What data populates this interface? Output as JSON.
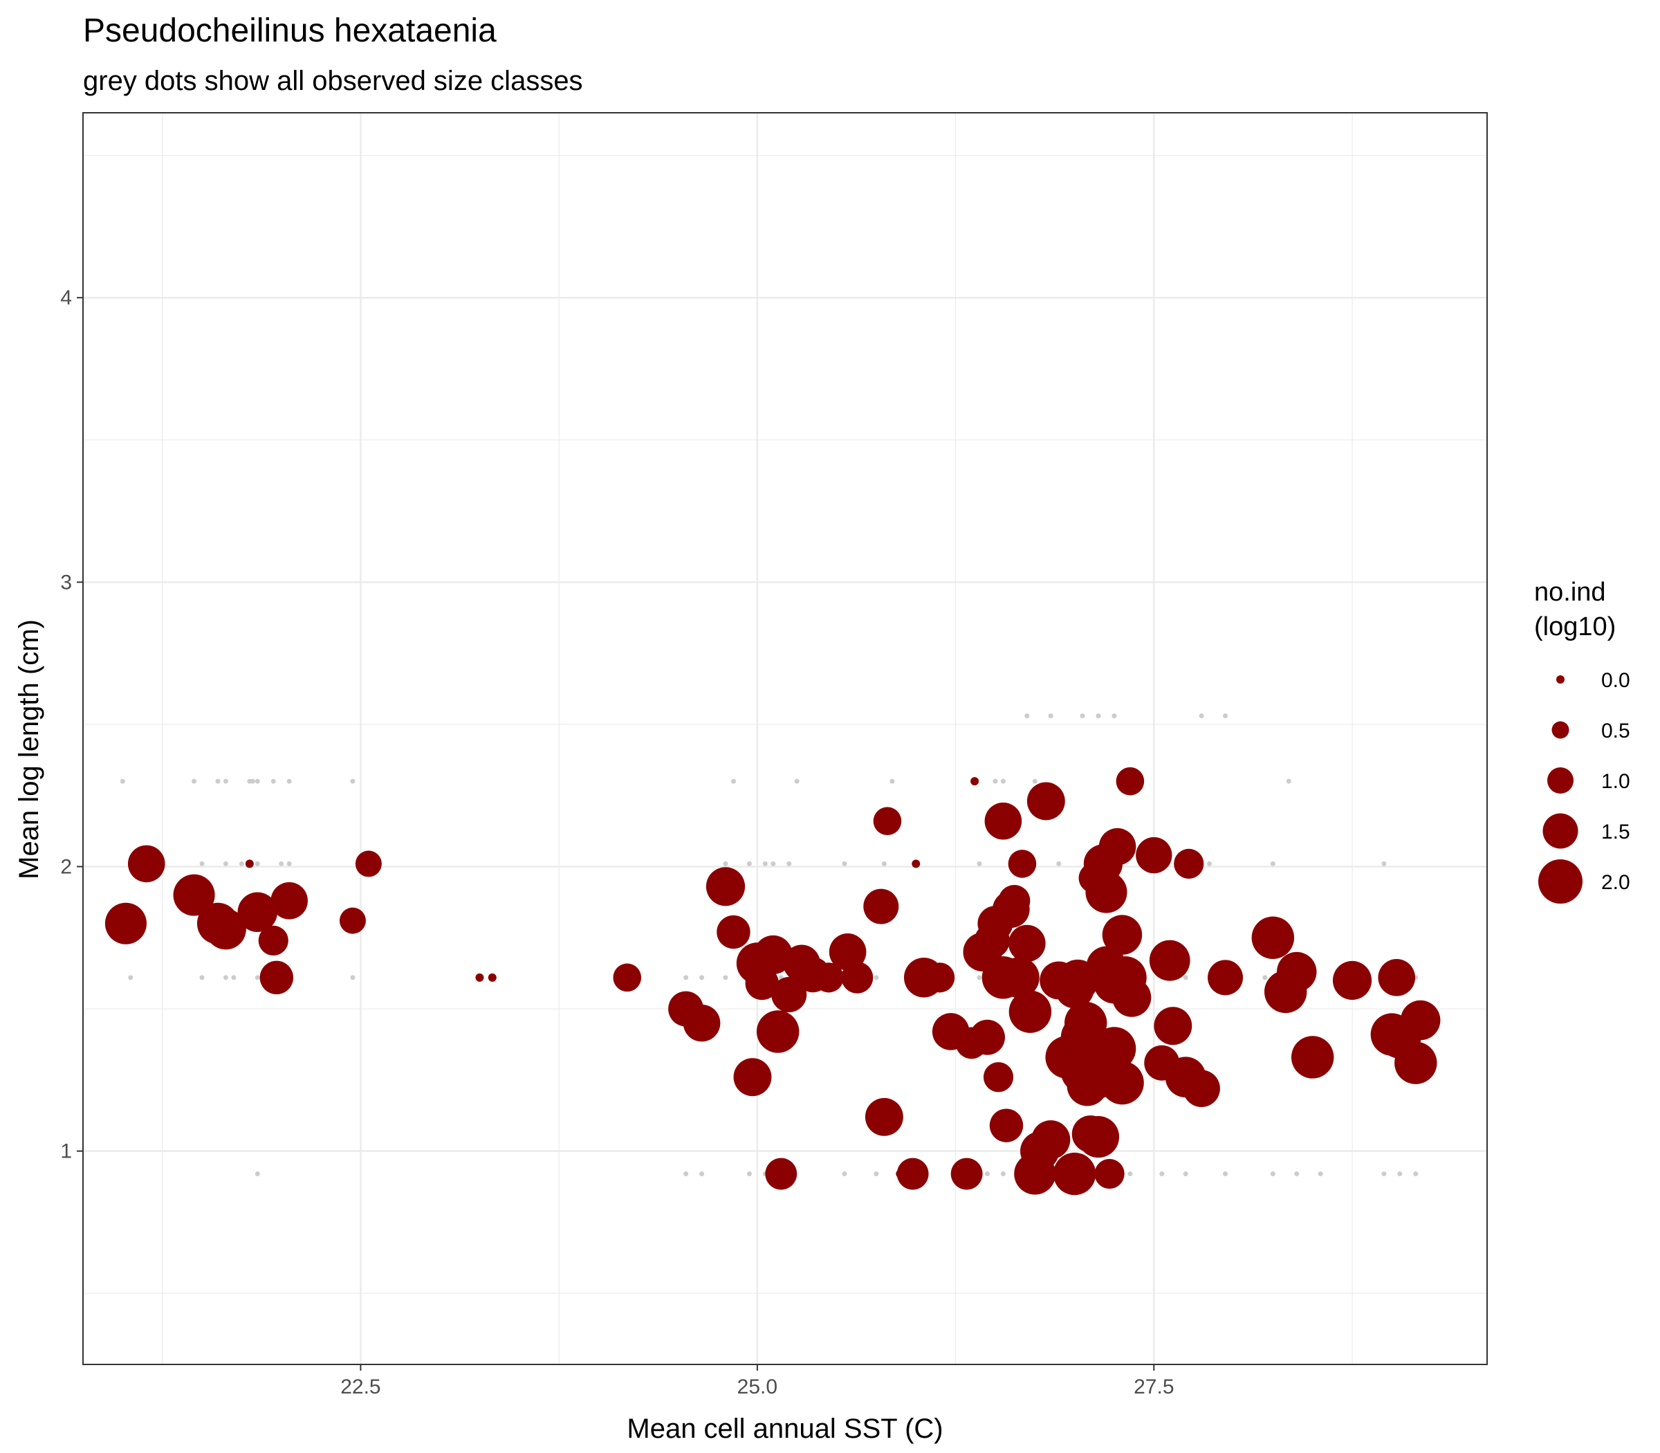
{
  "chart_data": {
    "type": "scatter",
    "title": "Pseudocheilinus hexataenia",
    "subtitle": "grey dots show all observed size classes",
    "xlabel": "Mean cell annual SST (C)",
    "ylabel": "Mean log length (cm)",
    "xlim": [
      20.75,
      29.6
    ],
    "ylim": [
      0.25,
      4.65
    ],
    "x_ticks": [
      22.5,
      25.0,
      27.5
    ],
    "x_tick_labels": [
      "22.5",
      "25.0",
      "27.5"
    ],
    "y_ticks": [
      1,
      2,
      3,
      4
    ],
    "y_tick_labels": [
      "1",
      "2",
      "3",
      "4"
    ],
    "grid": true,
    "legend": {
      "title_lines": [
        "no.ind",
        "(log10)"
      ],
      "placement": "right",
      "values": [
        0.0,
        0.5,
        1.0,
        1.5,
        2.0
      ],
      "labels": [
        "0.0",
        "0.5",
        "1.0",
        "1.5",
        "2.0"
      ]
    },
    "colors": {
      "points": "#8b0000",
      "background_points": "#cccccc",
      "grid": "#ebebeb",
      "border": "#333333"
    },
    "background_points": {
      "name": "all observed size classes",
      "x_values": [
        21.0,
        21.45,
        21.6,
        21.65,
        21.8,
        21.82,
        21.85,
        21.95,
        22.05,
        22.45,
        24.85,
        25.25,
        25.85,
        26.5,
        26.55,
        26.75,
        27.3,
        28.35,
        26.7,
        26.85,
        27.05,
        27.15,
        27.25,
        27.8,
        27.95,
        21.05,
        21.5,
        21.65,
        21.75,
        21.85,
        22.0,
        22.05,
        24.8,
        24.95,
        25.05,
        25.1,
        25.2,
        25.55,
        25.8,
        26.4,
        26.6,
        26.9,
        27.1,
        27.7,
        27.85,
        28.25,
        28.95,
        21.05,
        21.5,
        21.65,
        21.7,
        21.85,
        22.45,
        24.55,
        24.65,
        24.8,
        24.95,
        25.05,
        25.15,
        25.45,
        25.75,
        26.1,
        26.4,
        26.55,
        26.85,
        27.05,
        27.25,
        27.7,
        28.2,
        28.35,
        28.95,
        29.05,
        29.15,
        21.85,
        24.55,
        24.65,
        24.95,
        25.05,
        25.15,
        25.55,
        25.75,
        25.95,
        26.25,
        26.45,
        26.55,
        26.7,
        26.85,
        27.0,
        27.15,
        27.25,
        27.35,
        27.55,
        27.7,
        27.95,
        28.25,
        28.4,
        28.55,
        28.95,
        29.05,
        29.15
      ],
      "y_values": [
        2.3,
        2.3,
        2.3,
        2.3,
        2.3,
        2.3,
        2.3,
        2.3,
        2.3,
        2.3,
        2.3,
        2.3,
        2.3,
        2.3,
        2.3,
        2.3,
        2.3,
        2.3,
        2.53,
        2.53,
        2.53,
        2.53,
        2.53,
        2.53,
        2.53,
        2.01,
        2.01,
        2.01,
        2.01,
        2.01,
        2.01,
        2.01,
        2.01,
        2.01,
        2.01,
        2.01,
        2.01,
        2.01,
        2.01,
        2.01,
        2.01,
        2.01,
        2.01,
        2.01,
        2.01,
        2.01,
        2.01,
        1.61,
        1.61,
        1.61,
        1.61,
        1.61,
        1.61,
        1.61,
        1.61,
        1.61,
        1.61,
        1.61,
        1.61,
        1.61,
        1.61,
        1.61,
        1.61,
        1.61,
        1.61,
        1.61,
        1.61,
        1.61,
        1.61,
        1.61,
        1.61,
        1.61,
        1.61,
        0.92,
        0.92,
        0.92,
        0.92,
        0.92,
        0.92,
        0.92,
        0.92,
        0.92,
        0.92,
        0.92,
        0.92,
        0.92,
        0.92,
        0.92,
        0.92,
        0.92,
        0.92,
        0.92,
        0.92,
        0.92,
        0.92,
        0.92,
        0.92,
        0.92,
        0.92,
        0.92
      ]
    },
    "series": [
      {
        "x": [
          21.02,
          21.15,
          21.45,
          21.6,
          21.65,
          21.8,
          21.85,
          21.95,
          21.97,
          22.05,
          22.45,
          22.55,
          23.25,
          23.33,
          24.18,
          24.55,
          24.65,
          24.8,
          24.85,
          24.97,
          25.0,
          25.03,
          25.1,
          25.13,
          25.15,
          25.2,
          25.28,
          25.35,
          25.45,
          25.57,
          25.63,
          25.78,
          25.8,
          25.82,
          25.9,
          25.98,
          26.0,
          26.05,
          26.15,
          26.22,
          26.32,
          26.35,
          26.37,
          26.42,
          26.45,
          26.48,
          26.5,
          26.52,
          26.55,
          26.55,
          26.57,
          26.6,
          26.62,
          26.65,
          26.67,
          26.7,
          26.72,
          26.75,
          26.78,
          26.82,
          26.85,
          26.9,
          26.95,
          27.0,
          27.0,
          27.02,
          27.05,
          27.05,
          27.07,
          27.08,
          27.1,
          27.12,
          27.15,
          27.15,
          27.18,
          27.2,
          27.2,
          27.22,
          27.25,
          27.25,
          27.27,
          27.3,
          27.3,
          27.32,
          27.35,
          27.36,
          27.5,
          27.55,
          27.6,
          27.62,
          27.7,
          27.72,
          27.8,
          27.95,
          28.25,
          28.33,
          28.4,
          28.5,
          28.75,
          29.0,
          29.03,
          29.05,
          29.15,
          29.18
        ],
        "y": [
          1.8,
          2.01,
          1.9,
          1.8,
          1.78,
          2.01,
          1.84,
          1.74,
          1.61,
          1.88,
          1.81,
          2.01,
          1.61,
          1.61,
          1.61,
          1.5,
          1.45,
          1.93,
          1.77,
          1.26,
          1.66,
          1.59,
          1.69,
          1.42,
          0.92,
          1.55,
          1.66,
          1.62,
          1.61,
          1.7,
          1.61,
          1.86,
          1.12,
          2.16,
          0.92,
          0.92,
          2.01,
          1.61,
          1.61,
          1.42,
          0.92,
          1.38,
          2.3,
          1.7,
          1.4,
          1.74,
          1.8,
          1.26,
          1.61,
          2.16,
          1.09,
          1.85,
          1.88,
          1.61,
          2.01,
          1.73,
          1.49,
          0.92,
          1.0,
          2.23,
          1.04,
          1.6,
          1.33,
          0.92,
          1.57,
          1.6,
          1.4,
          1.28,
          1.45,
          1.23,
          1.06,
          1.96,
          1.05,
          1.25,
          2.01,
          1.91,
          1.65,
          0.92,
          1.59,
          1.36,
          2.07,
          1.24,
          1.76,
          1.61,
          2.3,
          1.54,
          2.04,
          1.31,
          1.67,
          1.44,
          1.26,
          2.01,
          1.22,
          1.61,
          1.75,
          1.56,
          1.63,
          1.33,
          1.6,
          1.41,
          1.61,
          1.4,
          1.31,
          1.46
        ],
        "size_log10": [
          1.85,
          1.6,
          1.85,
          1.85,
          1.8,
          0.0,
          1.75,
          1.2,
          1.4,
          1.6,
          1.0,
          1.0,
          0.0,
          0.0,
          1.1,
          1.5,
          1.6,
          1.7,
          1.4,
          1.65,
          1.85,
          1.4,
          1.7,
          1.9,
          1.3,
          1.5,
          1.6,
          1.5,
          1.2,
          1.6,
          1.3,
          1.5,
          1.65,
          1.1,
          0.0,
          1.3,
          0.0,
          1.75,
          1.2,
          1.6,
          1.3,
          1.3,
          0.0,
          1.7,
          1.5,
          1.5,
          1.5,
          1.2,
          1.9,
          1.6,
          1.4,
          1.6,
          1.3,
          1.8,
          1.1,
          1.6,
          1.9,
          1.85,
          1.7,
          1.65,
          1.7,
          1.65,
          1.9,
          1.9,
          1.7,
          1.85,
          1.95,
          1.95,
          1.9,
          1.8,
          1.6,
          1.2,
          1.85,
          1.6,
          1.7,
          1.85,
          1.75,
          1.2,
          1.8,
          1.95,
          1.6,
          1.95,
          1.75,
          1.9,
          1.1,
          1.7,
          1.55,
          1.5,
          1.8,
          1.65,
          1.8,
          1.2,
          1.6,
          1.5,
          1.9,
          1.9,
          1.75,
          1.9,
          1.7,
          1.9,
          1.6,
          1.9,
          1.9,
          1.75
        ],
        "_note": "placeholder"
      }
    ]
  }
}
